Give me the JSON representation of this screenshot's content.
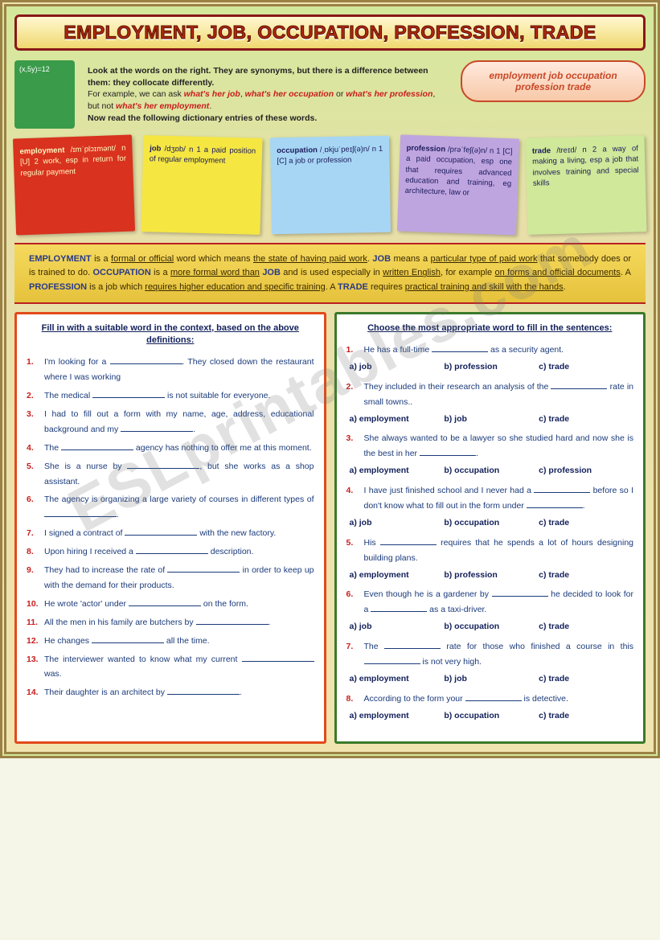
{
  "title": "EMPLOYMENT, JOB, OCCUPATION, PROFESSION, TRADE",
  "teacher_board": "(x,5y)=12",
  "intro": {
    "line1a": "Look at the words on the right. They are synonyms, but there is a difference between them: they collocate differently.",
    "line2_prefix": "For example, we can ask ",
    "ex1": "what's her job",
    "ex2": "what's her occupation",
    "ex3": "what's her profession",
    "not": "what's her employment",
    "line3": "Now read the following dictionary entries of these words."
  },
  "synonyms": "employment   job   occupation profession  trade",
  "cards": {
    "employment": {
      "hw": "employment",
      "body": "/ɪmˈplɔɪmənt/ n [U] 2 work, esp in return for regular payment"
    },
    "job": {
      "hw": "job",
      "body": "/dʒɒb/ n 1 a paid position of regular employment"
    },
    "occupation": {
      "hw": "occupation",
      "body": "/ˌɒkjuˈpeɪʃ(ə)n/ n 1 [C] a job or profession"
    },
    "profession": {
      "hw": "profession",
      "body": "/prəˈfeʃ(ə)n/ n 1 [C] a paid occupation, esp one that requires advanced education and training, eg architecture, law or"
    },
    "trade": {
      "hw": "trade",
      "body": "/treɪd/ n 2 a way of making a living, esp a job that involves training and special skills"
    }
  },
  "explain": {
    "t1": "EMPLOYMENT",
    "d1a": "formal or official",
    "d1b": "the state of having paid work",
    "t2": "JOB",
    "d2": "particular type of paid work",
    "t3": "OCCUPATION",
    "d3a": "more formal word than",
    "d3b": "JOB",
    "d3c": "written English",
    "d3d": "on forms and official documents",
    "t4": "PROFESSION",
    "d4": "requires higher education and specific training",
    "t5": "TRADE",
    "d5": "practical training and skill with the hands"
  },
  "ex1": {
    "heading": "Fill in with a suitable word in the context, based on the above definitions:",
    "items": [
      "I'm looking for a ____________. They closed down the restaurant where I was working",
      "The medical __________________ is not suitable for everyone.",
      "I had to fill out a form with my name, age, address, educational background and my ________________.",
      "The __________________ agency has nothing to offer me at this moment.",
      "She is a nurse by ________________, but she works as a shop assistant.",
      "The agency is organizing a large variety of courses in different types of __________________.",
      "I signed a contract of __________________ with the new factory.",
      "Upon hiring I received a ____________ description.",
      "They had to increase the rate of __________________ in order to keep up with the demand for their products.",
      "He wrote 'actor' under __________________ on the form.",
      "All the men in his family are butchers by ______________.",
      "He changes ______________ all the time.",
      "The interviewer wanted to know what my current __________________ was.",
      "Their daughter is an architect by __________________."
    ]
  },
  "ex2": {
    "heading": "Choose the most appropriate word to fill in the sentences:",
    "items": [
      {
        "n": "1.",
        "q": "He has a full-time ______________ as a security agent.",
        "a": "a) job",
        "b": "b) profession",
        "c": "c) trade"
      },
      {
        "n": "2.",
        "q": "They included in their research an analysis of the __________________ rate in small towns..",
        "a": "a) employment",
        "b": "b) job",
        "c": "c) trade"
      },
      {
        "n": "3.",
        "q": "She always wanted to be a lawyer so she studied hard and now she is the best in her __________________.",
        "a": "a) employment",
        "b": "b) occupation",
        "c": "c) profession"
      },
      {
        "n": "4.",
        "q": "I have just finished school and I never had a __________ before so I don't know what to fill out in the form under ______________.",
        "a": "a) job",
        "b": "b) occupation",
        "c": "c) trade"
      },
      {
        "n": "5.",
        "q": "His __________________ requires that he spends a lot of hours designing building plans.",
        "a": "a) employment",
        "b": "b) profession",
        "c": "c) trade"
      },
      {
        "n": "6.",
        "q": "Even though he is a gardener by __________________ he decided to look for a ______________ as a taxi-driver.",
        "a": "a) job",
        "b": "b) occupation",
        "c": "c) trade"
      },
      {
        "n": "7.",
        "q": "The __________________ rate for those who finished a course in this __________________ is not very high.",
        "a": "a) employment",
        "b": "b) job",
        "c": "c) trade"
      },
      {
        "n": "8.",
        "q": "According to the form your ______________ is detective.",
        "a": "a) employment",
        "b": "b) occupation",
        "c": "c) trade"
      }
    ]
  },
  "watermark": "ESLprintables.com"
}
